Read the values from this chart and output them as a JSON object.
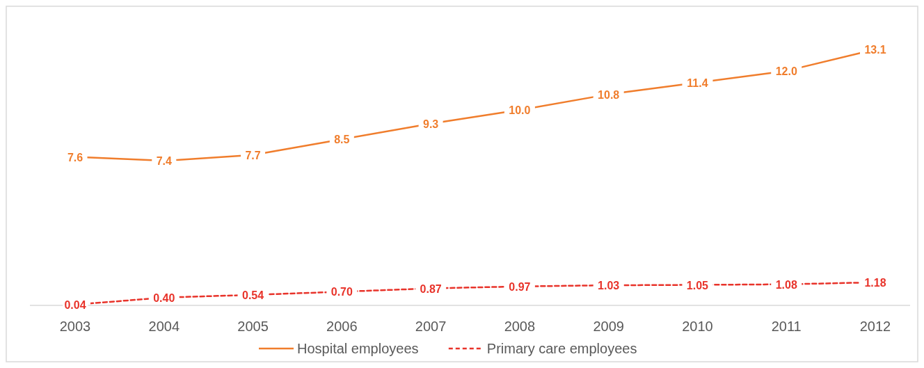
{
  "chart_data": {
    "type": "line",
    "categories": [
      "2003",
      "2004",
      "2005",
      "2006",
      "2007",
      "2008",
      "2009",
      "2010",
      "2011",
      "2012"
    ],
    "series": [
      {
        "name": "Hospital employees",
        "color": "#f07d2c",
        "line_style": "solid",
        "values": [
          7.6,
          7.4,
          7.7,
          8.5,
          9.3,
          10.0,
          10.8,
          11.4,
          12.0,
          13.1
        ],
        "value_labels": [
          "7.6",
          "7.4",
          "7.7",
          "8.5",
          "9.3",
          "10.0",
          "10.8",
          "11.4",
          "12.0",
          "13.1"
        ]
      },
      {
        "name": "Primary care employees",
        "color": "#e8332a",
        "line_style": "dashed",
        "values": [
          0.04,
          0.4,
          0.54,
          0.7,
          0.87,
          0.97,
          1.03,
          1.05,
          1.08,
          1.18
        ],
        "value_labels": [
          "0.04",
          "0.40",
          "0.54",
          "0.70",
          "0.87",
          "0.97",
          "1.03",
          "1.05",
          "1.08",
          "1.18"
        ]
      }
    ],
    "data_labels": true,
    "legend": "bottom"
  }
}
